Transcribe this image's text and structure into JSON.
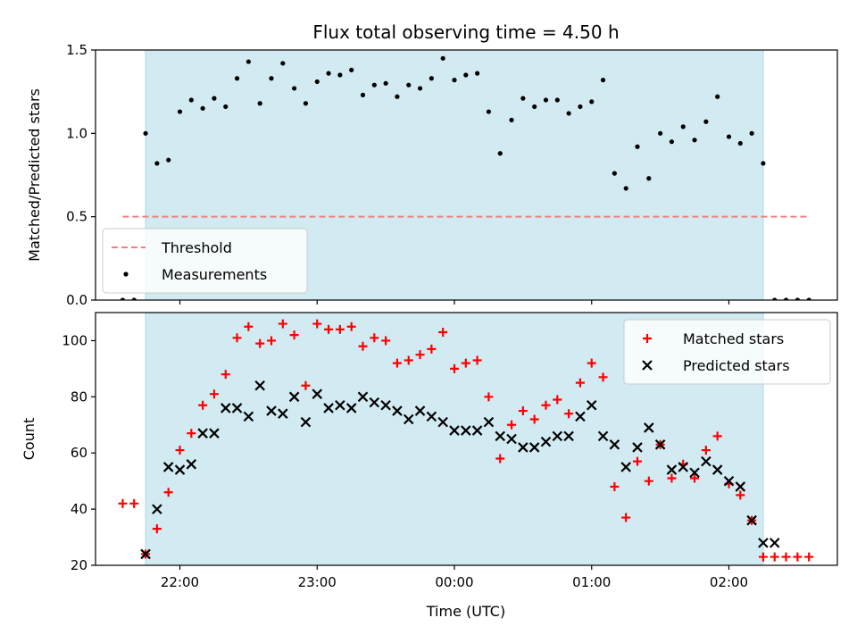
{
  "chart_data": {
    "type": "scatter",
    "title": "Flux total observing time = 4.50 h",
    "xlabel": "Time (UTC)",
    "x_ticks": [
      "22:00",
      "23:00",
      "00:00",
      "01:00",
      "02:00"
    ],
    "colors": {
      "band": "#add8e6",
      "threshold": "#f08080",
      "measurements": "#000000",
      "matched": "#ff0000",
      "predicted": "#000000"
    },
    "band_start": "21:45",
    "band_end": "02:15",
    "panels": [
      {
        "ylabel": "Matched/Predicted stars",
        "ylim": [
          0,
          1.5
        ],
        "y_ticks": [
          "0.0",
          "0.5",
          "1.0",
          "1.5"
        ],
        "legend_position": "lower-left",
        "threshold": {
          "name": "Threshold",
          "value": 0.5,
          "x_start": "21:35",
          "x_end": "02:35"
        },
        "series": [
          {
            "name": "Measurements",
            "marker": "dot",
            "x": [
              "21:35",
              "21:40",
              "21:45",
              "21:50",
              "21:55",
              "22:00",
              "22:05",
              "22:10",
              "22:15",
              "22:20",
              "22:25",
              "22:30",
              "22:35",
              "22:40",
              "22:45",
              "22:50",
              "22:55",
              "23:00",
              "23:05",
              "23:10",
              "23:15",
              "23:20",
              "23:25",
              "23:30",
              "23:35",
              "23:40",
              "23:45",
              "23:50",
              "23:55",
              "00:00",
              "00:05",
              "00:10",
              "00:15",
              "00:20",
              "00:25",
              "00:30",
              "00:35",
              "00:40",
              "00:45",
              "00:50",
              "00:55",
              "01:00",
              "01:05",
              "01:10",
              "01:15",
              "01:20",
              "01:25",
              "01:30",
              "01:35",
              "01:40",
              "01:45",
              "01:50",
              "01:55",
              "02:00",
              "02:05",
              "02:10",
              "02:15",
              "02:20",
              "02:25",
              "02:30",
              "02:35"
            ],
            "y": [
              0.0,
              0.0,
              1.0,
              0.82,
              0.84,
              1.13,
              1.2,
              1.15,
              1.21,
              1.16,
              1.33,
              1.43,
              1.18,
              1.33,
              1.42,
              1.27,
              1.18,
              1.31,
              1.36,
              1.35,
              1.38,
              1.23,
              1.29,
              1.3,
              1.22,
              1.29,
              1.27,
              1.33,
              1.45,
              1.32,
              1.35,
              1.36,
              1.13,
              0.88,
              1.08,
              1.21,
              1.16,
              1.2,
              1.2,
              1.12,
              1.16,
              1.19,
              1.32,
              0.76,
              0.67,
              0.92,
              0.73,
              1.0,
              0.95,
              1.04,
              0.96,
              1.07,
              1.22,
              0.98,
              0.94,
              1.0,
              0.82,
              0.0,
              0.0,
              0.0,
              0.0
            ]
          }
        ]
      },
      {
        "ylabel": "Count",
        "ylim": [
          20,
          110
        ],
        "y_ticks": [
          "20",
          "40",
          "60",
          "80",
          "100"
        ],
        "legend_position": "upper-right",
        "series": [
          {
            "name": "Matched stars",
            "marker": "plus",
            "x": [
              "21:35",
              "21:40",
              "21:45",
              "21:50",
              "21:55",
              "22:00",
              "22:05",
              "22:10",
              "22:15",
              "22:20",
              "22:25",
              "22:30",
              "22:35",
              "22:40",
              "22:45",
              "22:50",
              "22:55",
              "23:00",
              "23:05",
              "23:10",
              "23:15",
              "23:20",
              "23:25",
              "23:30",
              "23:35",
              "23:40",
              "23:45",
              "23:50",
              "23:55",
              "00:00",
              "00:05",
              "00:10",
              "00:15",
              "00:20",
              "00:25",
              "00:30",
              "00:35",
              "00:40",
              "00:45",
              "00:50",
              "00:55",
              "01:00",
              "01:05",
              "01:10",
              "01:15",
              "01:20",
              "01:25",
              "01:30",
              "01:35",
              "01:40",
              "01:45",
              "01:50",
              "01:55",
              "02:00",
              "02:05",
              "02:10",
              "02:15",
              "02:20",
              "02:25",
              "02:30",
              "02:35"
            ],
            "y": [
              42,
              42,
              24,
              33,
              46,
              61,
              67,
              77,
              81,
              88,
              101,
              105,
              99,
              100,
              106,
              102,
              84,
              106,
              104,
              104,
              105,
              98,
              101,
              100,
              92,
              93,
              95,
              97,
              103,
              90,
              92,
              93,
              80,
              58,
              70,
              75,
              72,
              77,
              79,
              74,
              85,
              92,
              87,
              48,
              37,
              57,
              50,
              63,
              51,
              56,
              51,
              61,
              66,
              49,
              45,
              36,
              23,
              23,
              23,
              23,
              23
            ]
          },
          {
            "name": "Predicted stars",
            "marker": "x",
            "x": [
              "21:45",
              "21:50",
              "21:55",
              "22:00",
              "22:05",
              "22:10",
              "22:15",
              "22:20",
              "22:25",
              "22:30",
              "22:35",
              "22:40",
              "22:45",
              "22:50",
              "22:55",
              "23:00",
              "23:05",
              "23:10",
              "23:15",
              "23:20",
              "23:25",
              "23:30",
              "23:35",
              "23:40",
              "23:45",
              "23:50",
              "23:55",
              "00:00",
              "00:05",
              "00:10",
              "00:15",
              "00:20",
              "00:25",
              "00:30",
              "00:35",
              "00:40",
              "00:45",
              "00:50",
              "00:55",
              "01:00",
              "01:05",
              "01:10",
              "01:15",
              "01:20",
              "01:25",
              "01:30",
              "01:35",
              "01:40",
              "01:45",
              "01:50",
              "01:55",
              "02:00",
              "02:05",
              "02:10",
              "02:15",
              "02:20"
            ],
            "y": [
              24,
              40,
              55,
              54,
              56,
              67,
              67,
              76,
              76,
              73,
              84,
              75,
              74,
              80,
              71,
              81,
              76,
              77,
              76,
              80,
              78,
              77,
              75,
              72,
              75,
              73,
              71,
              68,
              68,
              68,
              71,
              66,
              65,
              62,
              62,
              64,
              66,
              66,
              73,
              77,
              66,
              63,
              55,
              62,
              69,
              63,
              54,
              55,
              53,
              57,
              54,
              50,
              48,
              36,
              28,
              28
            ]
          }
        ]
      }
    ]
  }
}
